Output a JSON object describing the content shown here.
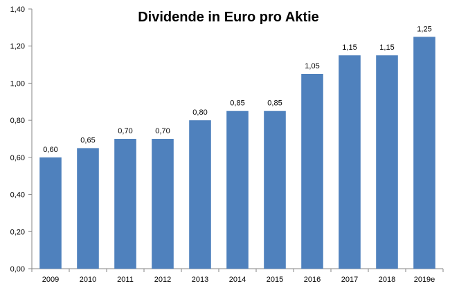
{
  "chart_data": {
    "type": "bar",
    "title": "Dividende in Euro pro Aktie",
    "categories": [
      "2009",
      "2010",
      "2011",
      "2012",
      "2013",
      "2014",
      "2015",
      "2016",
      "2017",
      "2018",
      "2019e"
    ],
    "values": [
      0.6,
      0.65,
      0.7,
      0.7,
      0.8,
      0.85,
      0.85,
      1.05,
      1.15,
      1.15,
      1.25
    ],
    "data_labels": [
      "0,60",
      "0,65",
      "0,70",
      "0,70",
      "0,80",
      "0,85",
      "0,85",
      "1,05",
      "1,15",
      "1,15",
      "1,25"
    ],
    "yticks": [
      0.0,
      0.2,
      0.4,
      0.6,
      0.8,
      1.0,
      1.2,
      1.4
    ],
    "ytick_labels": [
      "0,00",
      "0,20",
      "0,40",
      "0,60",
      "0,80",
      "1,00",
      "1,20",
      "1,40"
    ],
    "ylim": [
      0,
      1.4
    ],
    "xlabel": "",
    "ylabel": "",
    "grid": false,
    "legend": "none",
    "bar_color": "#4F81BD",
    "axis_color": "#868686"
  }
}
